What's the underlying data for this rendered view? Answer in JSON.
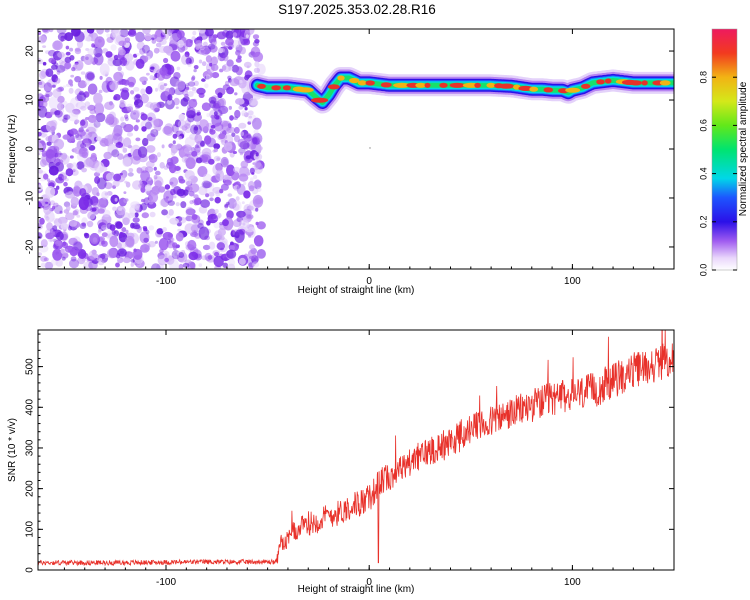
{
  "title": "S197.2025.353.02.28.R16",
  "chart_data": [
    {
      "type": "heatmap",
      "title": "S197.2025.353.02.28.R16",
      "xlabel": "Height of straight line (km)",
      "ylabel": "Frequency (Hz)",
      "xlim": [
        -163,
        150
      ],
      "ylim": [
        -24.5,
        24.5
      ],
      "x_ticks": [
        -100,
        0,
        100
      ],
      "y_ticks": [
        -20,
        -10,
        0,
        10,
        20
      ],
      "noise_region_x": [
        -163,
        -55
      ],
      "signal_trace": {
        "x": [
          -55,
          -50,
          -40,
          -30,
          -26,
          -23,
          -20,
          -17,
          -14,
          -10,
          -5,
          0,
          10,
          20,
          30,
          40,
          50,
          60,
          70,
          75,
          80,
          85,
          90,
          95,
          98,
          100,
          105,
          110,
          120,
          130,
          140,
          150
        ],
        "frequency": [
          13,
          12.5,
          12.5,
          12,
          10.5,
          9.5,
          11,
          13,
          14.5,
          14.5,
          13.5,
          13.5,
          13,
          13,
          13,
          13,
          13,
          13,
          12.8,
          12.5,
          12.2,
          12.2,
          12,
          12,
          11.5,
          12,
          12.5,
          13.5,
          14,
          13.5,
          13.5,
          13.5
        ]
      },
      "colorbar": {
        "label": "Normalized spectral amplitude",
        "ticks": [
          0.0,
          0.2,
          0.4,
          0.6,
          0.8
        ],
        "tick_labels": [
          "0.0",
          "0.2",
          "0.4",
          "0.6",
          "0.8"
        ],
        "range": [
          0,
          1
        ]
      }
    },
    {
      "type": "line",
      "xlabel": "Height of straight line (km)",
      "ylabel": "SNR (10 * v/v)",
      "xlim": [
        -163,
        150
      ],
      "ylim": [
        0,
        590
      ],
      "x_ticks": [
        -100,
        0,
        100
      ],
      "y_ticks": [
        0,
        100,
        200,
        300,
        400,
        500
      ],
      "series": [
        {
          "name": "SNR",
          "color": "#e8312a",
          "x": [
            -163,
            -120,
            -80,
            -60,
            -52,
            -46,
            -45,
            -44,
            -42,
            -38,
            -30,
            -25,
            -20,
            -15,
            -10,
            -5,
            0,
            5,
            10,
            20,
            30,
            40,
            50,
            60,
            70,
            80,
            90,
            100,
            110,
            120,
            130,
            140,
            150
          ],
          "values": [
            18,
            18,
            20,
            20,
            20,
            20,
            30,
            75,
            60,
            90,
            115,
            120,
            135,
            140,
            155,
            165,
            175,
            215,
            230,
            265,
            295,
            315,
            345,
            365,
            385,
            405,
            420,
            430,
            440,
            465,
            490,
            505,
            520
          ],
          "noise_amplitude": [
            6,
            6,
            6,
            6,
            6,
            6,
            15,
            20,
            20,
            25,
            30,
            30,
            32,
            32,
            32,
            35,
            35,
            35,
            35,
            35,
            38,
            40,
            40,
            40,
            40,
            42,
            42,
            42,
            45,
            45,
            45,
            45,
            45
          ]
        }
      ]
    }
  ],
  "colors": {
    "noise_purple": "#7b2be8",
    "signal_red": "#e8312a"
  }
}
